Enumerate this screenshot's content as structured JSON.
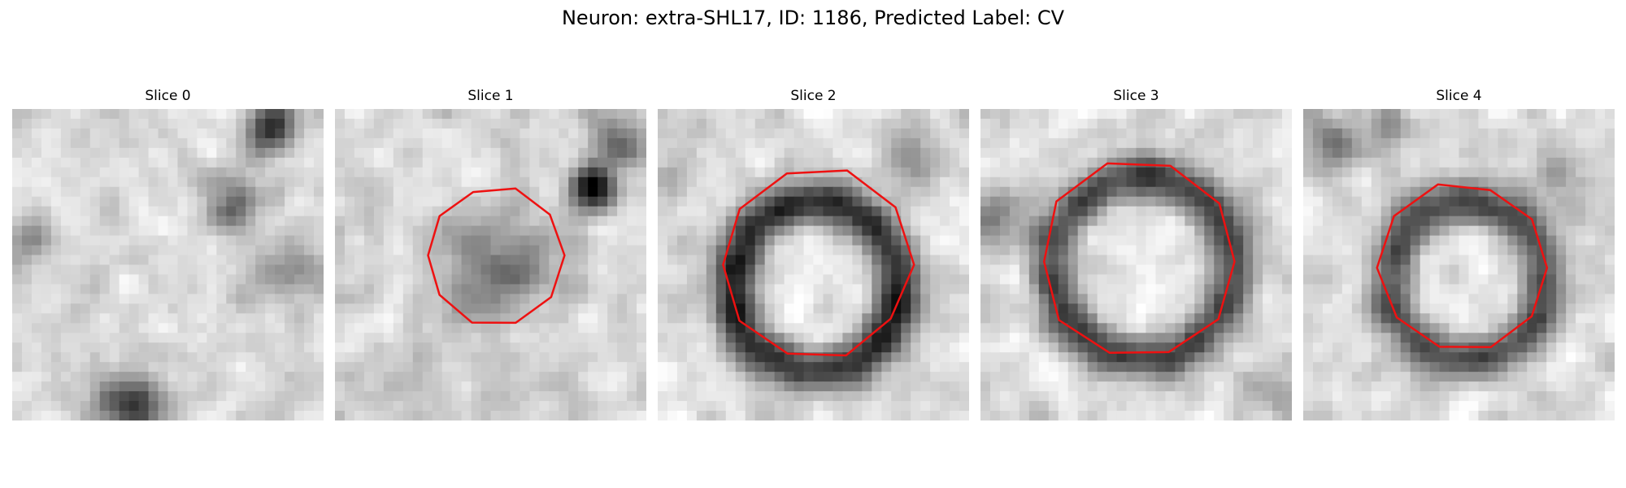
{
  "figure": {
    "title": "Neuron: extra-SHL17, ID: 1186, Predicted Label: CV"
  },
  "slices": [
    {
      "label": "Slice 0",
      "has_contour": false,
      "contour_radius": 0
    },
    {
      "label": "Slice 1",
      "has_contour": true,
      "contour_radius": 0.22
    },
    {
      "label": "Slice 2",
      "has_contour": true,
      "contour_radius": 0.31
    },
    {
      "label": "Slice 3",
      "has_contour": true,
      "contour_radius": 0.32
    },
    {
      "label": "Slice 4",
      "has_contour": true,
      "contour_radius": 0.27
    }
  ],
  "colors": {
    "contour": "#ee1111",
    "background": "#ffffff"
  }
}
